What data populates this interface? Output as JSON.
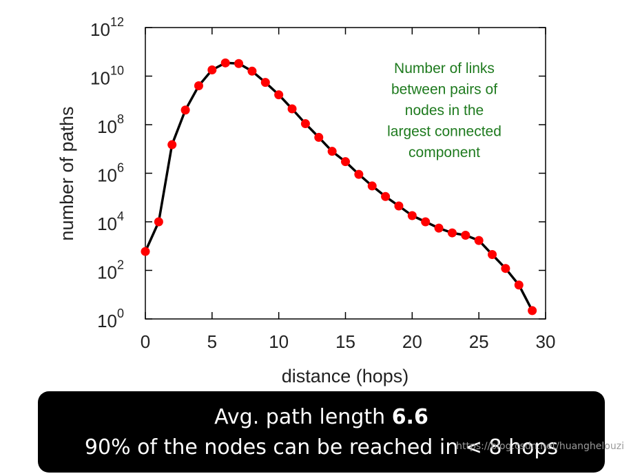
{
  "chart_data": {
    "type": "line",
    "x": [
      0,
      1,
      2,
      3,
      4,
      5,
      6,
      7,
      8,
      9,
      10,
      11,
      12,
      13,
      14,
      15,
      16,
      17,
      18,
      19,
      20,
      21,
      22,
      23,
      24,
      25,
      26,
      27,
      28,
      29
    ],
    "y": [
      600,
      10000,
      15000000,
      400000000,
      4000000000,
      18000000000,
      35000000000,
      33000000000,
      16000000000,
      5500000000,
      1700000000,
      450000000,
      110000000,
      30000000,
      8000000,
      3000000,
      900000,
      300000,
      110000,
      45000,
      18000,
      10000,
      5500,
      3500,
      2800,
      1700,
      450,
      120,
      25,
      2.2
    ],
    "xlabel": "distance (hops)",
    "ylabel": "number of paths",
    "xlim": [
      0,
      30
    ],
    "ylim": [
      1,
      1000000000000
    ],
    "yscale": "log",
    "xticks": [
      "0",
      "5",
      "10",
      "15",
      "20",
      "25",
      "30"
    ],
    "yticks": [
      {
        "base": "10",
        "exp": "0"
      },
      {
        "base": "10",
        "exp": "2"
      },
      {
        "base": "10",
        "exp": "4"
      },
      {
        "base": "10",
        "exp": "6"
      },
      {
        "base": "10",
        "exp": "8"
      },
      {
        "base": "10",
        "exp": "10"
      },
      {
        "base": "10",
        "exp": "12"
      }
    ],
    "annotation": [
      "Number of links",
      "between pairs of",
      "nodes in the",
      "largest connected",
      "component"
    ],
    "colors": {
      "line": "#000000",
      "marker": "#ff0000",
      "annotation": "#1e7a1e"
    },
    "grid": false
  },
  "banner": {
    "line1_prefix": "Avg. path length ",
    "line1_value": "6.6",
    "line2": "90% of the nodes can be reached in < 8 hops"
  },
  "watermark": "https://blog.csdn.net/huanghelouzi"
}
